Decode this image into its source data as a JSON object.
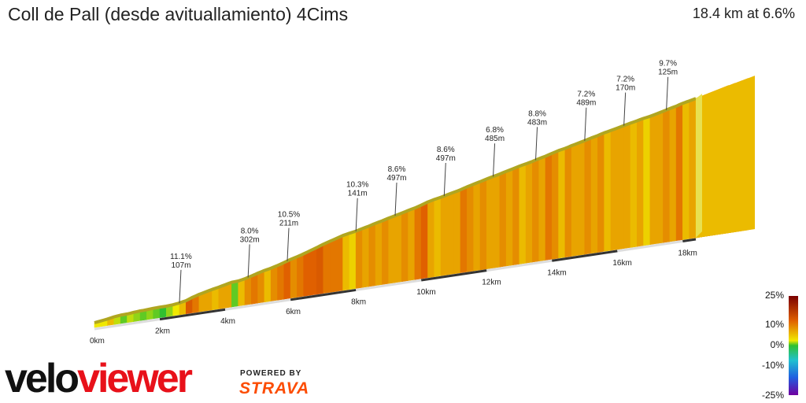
{
  "header": {
    "title": "Coll de Pall (desde avituallamiento) 4Cims",
    "summary": "18.4 km at 6.6%"
  },
  "chart_data": {
    "type": "area",
    "title": "Coll de Pall (desde avituallamiento) 4Cims",
    "x_ticks": [
      "0km",
      "2km",
      "4km",
      "6km",
      "8km",
      "10km",
      "12km",
      "14km",
      "16km",
      "18km"
    ],
    "xlim_km": [
      0,
      18.4
    ],
    "annotations": [
      {
        "km": 2.6,
        "grade": "11.1%",
        "length": "107m"
      },
      {
        "km": 4.7,
        "grade": "8.0%",
        "length": "302m"
      },
      {
        "km": 5.9,
        "grade": "10.5%",
        "length": "211m"
      },
      {
        "km": 8.0,
        "grade": "10.3%",
        "length": "141m"
      },
      {
        "km": 9.2,
        "grade": "8.6%",
        "length": "497m"
      },
      {
        "km": 10.7,
        "grade": "8.6%",
        "length": "497m"
      },
      {
        "km": 12.2,
        "grade": "6.8%",
        "length": "485m"
      },
      {
        "km": 13.5,
        "grade": "8.8%",
        "length": "483m"
      },
      {
        "km": 15.0,
        "grade": "7.2%",
        "length": "489m"
      },
      {
        "km": 16.2,
        "grade": "7.2%",
        "length": "170m"
      },
      {
        "km": 17.5,
        "grade": "9.7%",
        "length": "125m"
      }
    ],
    "segment_km": 0.2,
    "segment_grades": [
      4,
      4,
      6,
      3,
      1,
      3,
      2,
      1,
      2,
      1,
      0,
      2,
      4,
      6,
      11,
      9,
      7,
      7,
      6,
      7,
      7,
      1,
      6,
      8,
      9,
      8,
      6,
      8,
      9,
      10,
      8,
      9,
      10,
      10,
      11,
      9,
      9,
      9,
      6,
      5,
      8,
      7,
      8,
      7,
      8,
      7,
      7,
      8,
      7,
      9,
      10,
      7,
      6,
      7,
      7,
      7,
      9,
      8,
      7,
      8,
      7,
      7,
      8,
      7,
      8,
      6,
      7,
      8,
      7,
      9,
      8,
      6,
      8,
      7,
      7,
      8,
      7,
      8,
      6,
      7,
      7,
      7,
      6,
      7,
      5,
      7,
      7,
      8,
      7,
      9,
      6,
      7,
      7,
      6,
      7,
      8,
      10,
      6,
      6,
      7,
      7,
      6
    ],
    "legend": {
      "labels": [
        "25%",
        "10%",
        "0%",
        "-10%",
        "-25%"
      ],
      "colors": {
        "steep": "#7a0000",
        "hard": "#e06000",
        "moderate": "#f0e800",
        "flat": "#30c030",
        "descent": "#2060e0",
        "steep_descent": "#7000a0"
      }
    }
  },
  "branding": {
    "logo_text_a": "velo",
    "logo_text_b": "viewer",
    "powered_by": "POWERED BY",
    "strava": "STRAVA"
  }
}
